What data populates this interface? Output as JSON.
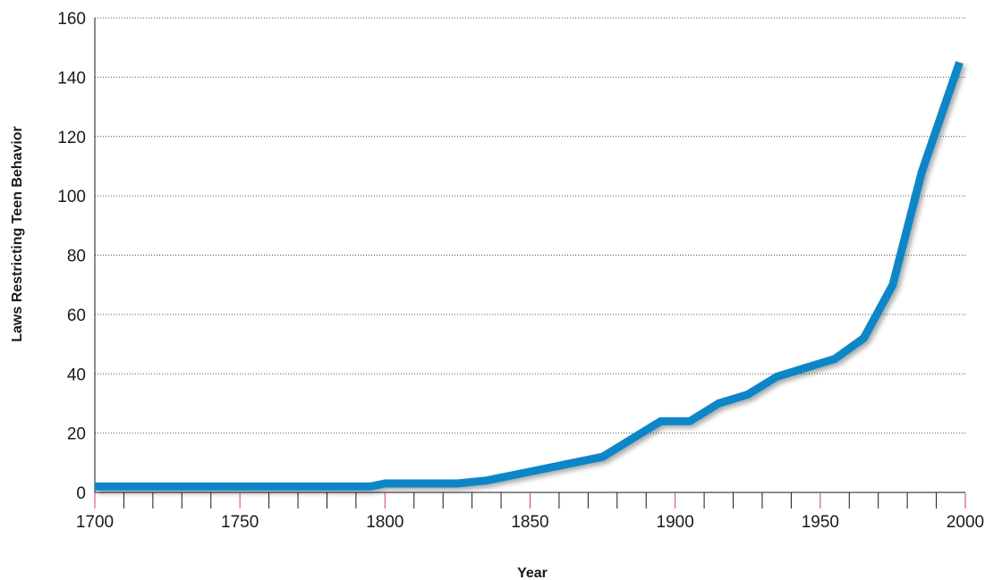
{
  "chart_data": {
    "type": "line",
    "xlabel": "Year",
    "ylabel": "Laws Restricting Teen Behavior",
    "xlim": [
      1700,
      2000
    ],
    "ylim": [
      0,
      160
    ],
    "x_ticks": [
      1700,
      1750,
      1800,
      1850,
      1900,
      1950,
      2000
    ],
    "y_ticks": [
      0,
      20,
      40,
      60,
      80,
      100,
      120,
      140,
      160
    ],
    "grid": "horizontal dotted",
    "series": [
      {
        "color": "#0a86c8",
        "x": [
          1700,
          1710,
          1720,
          1730,
          1740,
          1750,
          1760,
          1770,
          1780,
          1790,
          1795,
          1800,
          1807,
          1815,
          1825,
          1835,
          1845,
          1855,
          1865,
          1875,
          1885,
          1895,
          1905,
          1915,
          1925,
          1935,
          1945,
          1955,
          1965,
          1975,
          1985,
          1998
        ],
        "y": [
          2,
          2,
          2,
          2,
          2,
          2,
          2,
          2,
          2,
          2,
          2,
          3,
          3,
          3,
          3,
          4,
          6,
          8,
          10,
          12,
          18,
          24,
          24,
          30,
          33,
          39,
          42,
          45,
          52,
          70,
          108,
          145
        ]
      }
    ]
  }
}
